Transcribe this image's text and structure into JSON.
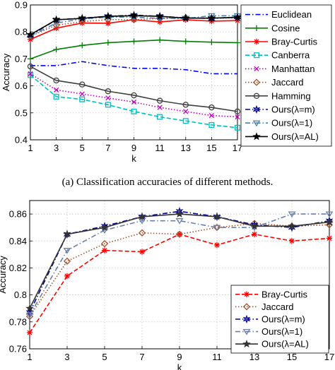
{
  "caption_a": "(a)  Classification accuracies of different methods.",
  "chart_data": [
    {
      "type": "line",
      "xlabel": "k",
      "ylabel": "Accuracy",
      "x": [
        1,
        3,
        5,
        7,
        9,
        11,
        13,
        15,
        17
      ],
      "xlim": [
        1,
        17
      ],
      "ylim": [
        0.4,
        0.9
      ],
      "xticks": [
        1,
        3,
        5,
        7,
        9,
        11,
        13,
        15,
        17
      ],
      "yticks": [
        0.4,
        0.5,
        0.6,
        0.7,
        0.8,
        0.9
      ],
      "ytick_labels": [
        "0.4",
        "0.5",
        "0.6",
        "0.7",
        "0.8",
        "0.9"
      ],
      "grid": true,
      "legend_position": "right, outside plot",
      "series": [
        {
          "name": "Euclidean",
          "color": "#0000ff",
          "dash": "dashdot",
          "marker": "none",
          "values": [
            0.675,
            0.675,
            0.69,
            0.675,
            0.665,
            0.665,
            0.66,
            0.645,
            0.645
          ]
        },
        {
          "name": "Cosine",
          "color": "#008000",
          "dash": "solid",
          "marker": "plus",
          "values": [
            0.7,
            0.735,
            0.75,
            0.76,
            0.765,
            0.77,
            0.765,
            0.762,
            0.76
          ]
        },
        {
          "name": "Bray-Curtis",
          "color": "#ff0000",
          "dash": "solid",
          "marker": "asterisk",
          "values": [
            0.772,
            0.814,
            0.833,
            0.832,
            0.845,
            0.837,
            0.845,
            0.84,
            0.842
          ]
        },
        {
          "name": "Canberra",
          "color": "#00bfbf",
          "dash": "dashed",
          "marker": "square",
          "values": [
            0.64,
            0.56,
            0.55,
            0.53,
            0.505,
            0.485,
            0.47,
            0.455,
            0.445
          ]
        },
        {
          "name": "Manhattan",
          "color": "#bf00bf",
          "dash": "dotted",
          "marker": "x",
          "values": [
            0.645,
            0.585,
            0.57,
            0.555,
            0.54,
            0.52,
            0.505,
            0.49,
            0.485
          ]
        },
        {
          "name": "Jaccard",
          "color": "#a0522d",
          "dash": "dotted",
          "marker": "diamond",
          "values": [
            0.784,
            0.825,
            0.838,
            0.846,
            0.845,
            0.85,
            0.853,
            0.851,
            0.852
          ]
        },
        {
          "name": "Hamming",
          "color": "#404040",
          "dash": "solid",
          "marker": "circle",
          "values": [
            0.672,
            0.62,
            0.605,
            0.58,
            0.565,
            0.545,
            0.53,
            0.52,
            0.505
          ]
        },
        {
          "name": "Ours(λ=m)",
          "color": "#00008b",
          "dash": "dashdot",
          "marker": "star6",
          "values": [
            0.787,
            0.845,
            0.851,
            0.858,
            0.862,
            0.858,
            0.852,
            0.85,
            0.855
          ]
        },
        {
          "name": "Ours(λ=1)",
          "color": "#4682b4",
          "dash": "dashdot",
          "marker": "triangle",
          "values": [
            0.785,
            0.833,
            0.848,
            0.855,
            0.855,
            0.85,
            0.85,
            0.86,
            0.86
          ]
        },
        {
          "name": "Ours(λ=AL)",
          "color": "#000000",
          "dash": "solid",
          "marker": "star5",
          "values": [
            0.79,
            0.845,
            0.85,
            0.858,
            0.86,
            0.858,
            0.851,
            0.851,
            0.854
          ]
        }
      ]
    },
    {
      "type": "line",
      "xlabel": "k",
      "ylabel": "Accuracy",
      "x": [
        1,
        3,
        5,
        7,
        9,
        11,
        13,
        15,
        17
      ],
      "xlim": [
        1,
        17
      ],
      "ylim": [
        0.76,
        0.87
      ],
      "xticks": [
        1,
        3,
        5,
        7,
        9,
        11,
        13,
        15,
        17
      ],
      "yticks": [
        0.76,
        0.78,
        0.8,
        0.82,
        0.84,
        0.86
      ],
      "ytick_labels": [
        "0.76",
        "0.78",
        "0.8",
        "0.82",
        "0.84",
        "0.86"
      ],
      "grid": true,
      "legend_position": "bottom-right",
      "series": [
        {
          "name": "Bray-Curtis",
          "color": "#ff0000",
          "dash": "dashed",
          "marker": "asterisk",
          "values": [
            0.772,
            0.814,
            0.833,
            0.832,
            0.845,
            0.837,
            0.845,
            0.84,
            0.842
          ]
        },
        {
          "name": "Jaccard",
          "color": "#a0522d",
          "dash": "dotted",
          "marker": "diamond",
          "values": [
            0.784,
            0.825,
            0.838,
            0.846,
            0.845,
            0.85,
            0.853,
            0.851,
            0.852
          ]
        },
        {
          "name": "Ours(λ=m)",
          "color": "#00008b",
          "dash": "dashdot",
          "marker": "star6",
          "values": [
            0.787,
            0.845,
            0.851,
            0.858,
            0.862,
            0.858,
            0.852,
            0.85,
            0.855
          ]
        },
        {
          "name": "Ours(λ=1)",
          "color": "#6a7fa8",
          "dash": "dashdot",
          "marker": "triangle",
          "values": [
            0.785,
            0.833,
            0.848,
            0.855,
            0.855,
            0.85,
            0.85,
            0.86,
            0.86
          ]
        },
        {
          "name": "Ours(λ=AL)",
          "color": "#333333",
          "dash": "solid",
          "marker": "star5",
          "values": [
            0.79,
            0.845,
            0.85,
            0.858,
            0.86,
            0.858,
            0.851,
            0.851,
            0.854
          ]
        }
      ]
    }
  ]
}
